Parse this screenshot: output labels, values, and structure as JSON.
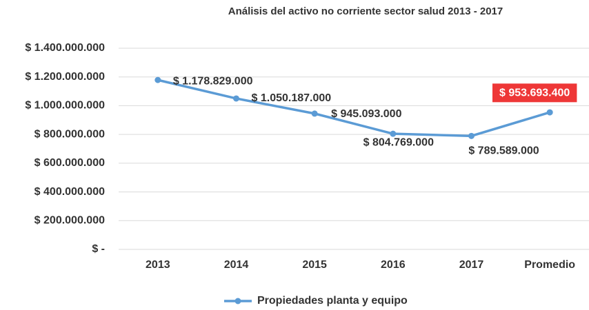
{
  "chart_data": {
    "type": "line",
    "title": "Análisis del activo no corriente sector salud 2013 - 2017",
    "categories": [
      "2013",
      "2014",
      "2015",
      "2016",
      "2017",
      "Promedio"
    ],
    "series": [
      {
        "name": "Propiedades planta y equipo",
        "color": "#5b9bd5",
        "values": [
          1178829000,
          1050187000,
          945093000,
          804769000,
          789589000,
          953693400
        ],
        "value_labels": [
          "$ 1.178.829.000",
          "$ 1.050.187.000",
          "$ 945.093.000",
          "$ 804.769.000",
          "$ 789.589.000",
          "$ 953.693.400"
        ]
      }
    ],
    "ylim": [
      0,
      1400000000
    ],
    "yticks": [
      {
        "value": 0,
        "label": "$ -"
      },
      {
        "value": 200000000,
        "label": "$ 200.000.000"
      },
      {
        "value": 400000000,
        "label": "$ 400.000.000"
      },
      {
        "value": 600000000,
        "label": "$ 600.000.000"
      },
      {
        "value": 800000000,
        "label": "$ 800.000.000"
      },
      {
        "value": 1000000000,
        "label": "$ 1.000.000.000"
      },
      {
        "value": 1200000000,
        "label": "$ 1.200.000.000"
      },
      {
        "value": 1400000000,
        "label": "$ 1.400.000.000"
      }
    ],
    "grid": true,
    "legend": "bottom"
  }
}
